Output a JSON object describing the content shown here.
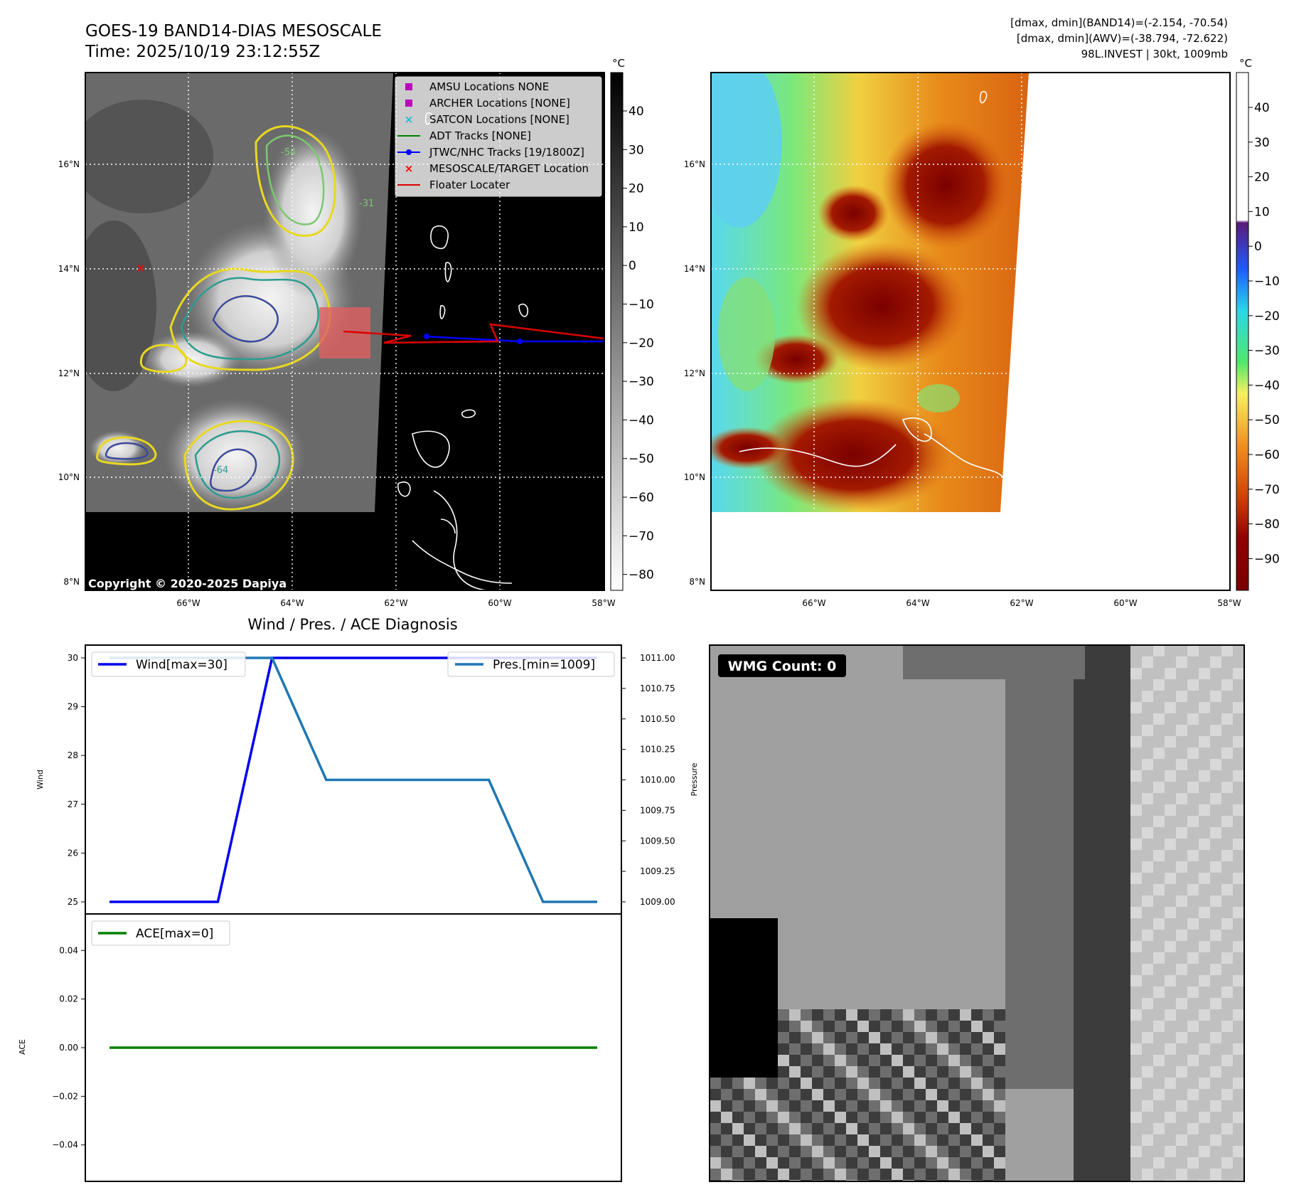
{
  "header": {
    "title_line1": "GOES-19 BAND14-DIAS MESOSCALE",
    "title_line2": "Time: 2025/10/19 23:12:55Z",
    "stats_line1": "[dmax, dmin](BAND14)=(-2.154, -70.54)",
    "stats_line2": "[dmax, dmin](AWV)=(-38.794, -72.622)",
    "stats_line3": "98L.INVEST | 30kt, 1009mb"
  },
  "colors": {
    "wind": "#0000ee",
    "pressure": "#1f77b4",
    "ace": "#008000",
    "jtwc_track": "#0000ff",
    "floater": "#dd0000",
    "target": "#ff0000",
    "amsu": "#bb00bb",
    "archer": "#bb00bb",
    "satcon": "#17becf",
    "adt": "#008000"
  },
  "map_axes": {
    "lon_ticks": [
      "66°W",
      "64°W",
      "62°W",
      "60°W",
      "58°W"
    ],
    "lat_ticks": [
      "16°N",
      "14°N",
      "12°N",
      "10°N",
      "8°N"
    ]
  },
  "left_colorbar": {
    "unit": "°C",
    "ticks": [
      "40",
      "30",
      "20",
      "10",
      "0",
      "−10",
      "−20",
      "−30",
      "−40",
      "−50",
      "−60",
      "−70",
      "−80"
    ]
  },
  "right_colorbar": {
    "unit": "°C",
    "ticks": [
      "40",
      "30",
      "20",
      "10",
      "0",
      "−10",
      "−20",
      "−30",
      "−40",
      "−50",
      "−60",
      "−70",
      "−80",
      "−90"
    ]
  },
  "legend": [
    {
      "label": "AMSU Locations NONE",
      "marker": "square",
      "color": "#bb00bb"
    },
    {
      "label": "ARCHER Locations [NONE]",
      "marker": "square",
      "color": "#bb00bb"
    },
    {
      "label": "SATCON Locations [NONE]",
      "marker": "x",
      "color": "#17becf"
    },
    {
      "label": "ADT Tracks [NONE]",
      "marker": "line",
      "color": "#008000"
    },
    {
      "label": "JTWC/NHC Tracks [19/1800Z]",
      "marker": "line-dot",
      "color": "#0000ff"
    },
    {
      "label": "MESOSCALE/TARGET Location",
      "marker": "x",
      "color": "#ff0000"
    },
    {
      "label": "Floater Locater",
      "marker": "line",
      "color": "#dd0000"
    }
  ],
  "copyright": "Copyright © 2020-2025 Dapiya",
  "contour_labels": [
    "-54",
    "-31",
    "-64"
  ],
  "wmg": {
    "label": "WMG Count: 0"
  },
  "chart_data": [
    {
      "type": "line",
      "title": "Wind / Pres. / ACE Diagnosis",
      "x": [
        0,
        1,
        2,
        3,
        4,
        5,
        6,
        7,
        8,
        9
      ],
      "series": [
        {
          "name": "Wind[max=30]",
          "axis": "left",
          "values": [
            25,
            25,
            25,
            30,
            30,
            30,
            30,
            30,
            30,
            30
          ]
        },
        {
          "name": "Pres.[min=1009]",
          "axis": "right",
          "values": [
            1011,
            1011,
            1011,
            1011,
            1010,
            1010,
            1010,
            1010,
            1009,
            1009
          ]
        }
      ],
      "ylabel": "Wind",
      "ylim": [
        25,
        30
      ],
      "yticks": [
        "25",
        "26",
        "27",
        "28",
        "29",
        "30"
      ],
      "y2label": "Pressure",
      "y2lim": [
        1009,
        1011
      ],
      "y2ticks": [
        "1009.00",
        "1009.25",
        "1009.50",
        "1009.75",
        "1010.00",
        "1010.25",
        "1010.50",
        "1010.75",
        "1011.00"
      ],
      "legend": [
        "upper-left",
        "upper-right"
      ]
    },
    {
      "type": "line",
      "x": [
        0,
        1,
        2,
        3,
        4,
        5,
        6,
        7,
        8,
        9
      ],
      "series": [
        {
          "name": "ACE[max=0]",
          "values": [
            0,
            0,
            0,
            0,
            0,
            0,
            0,
            0,
            0,
            0
          ]
        }
      ],
      "ylabel": "ACE",
      "ylim": [
        -0.055,
        0.055
      ],
      "yticks": [
        "0.04",
        "0.02",
        "0.00",
        "−0.02",
        "−0.04"
      ],
      "legend": "upper-left"
    }
  ]
}
